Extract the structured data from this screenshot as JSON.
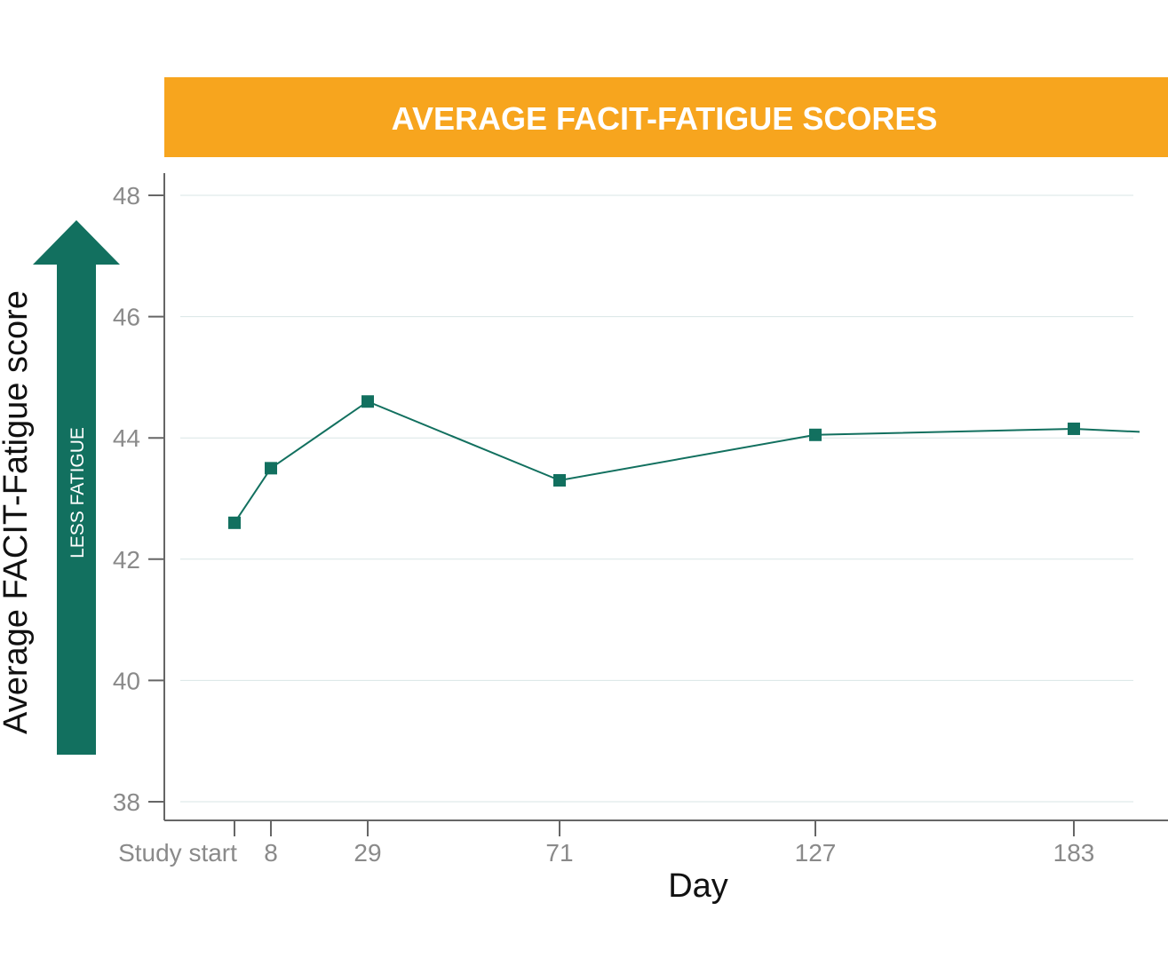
{
  "chart_data": {
    "type": "line",
    "title": "AVERAGE FACIT-FATIGUE SCORES",
    "xlabel": "Day",
    "ylabel": "Average FACIT-Fatigue score",
    "arrow_label": "LESS FATIGUE",
    "x_tick_labels": [
      "Study start",
      "8",
      "29",
      "71",
      "127",
      "183"
    ],
    "y_ticks": [
      38,
      40,
      42,
      44,
      46,
      48
    ],
    "ylim": [
      38,
      48
    ],
    "grid": true,
    "series": [
      {
        "points": [
          {
            "x": "Study start",
            "y": 42.6
          },
          {
            "x": "8",
            "y": 43.5
          },
          {
            "x": "29",
            "y": 44.6
          },
          {
            "x": "71",
            "y": 43.3
          },
          {
            "x": "127",
            "y": 44.05
          },
          {
            "x": "183",
            "y": 44.15
          }
        ],
        "continues_to": 44.1
      }
    ],
    "colors": {
      "title_band": "#f7a51e",
      "series": "#12705f",
      "arrow": "#12705f",
      "grid": "#d9e6e6",
      "axis": "#666666"
    }
  }
}
